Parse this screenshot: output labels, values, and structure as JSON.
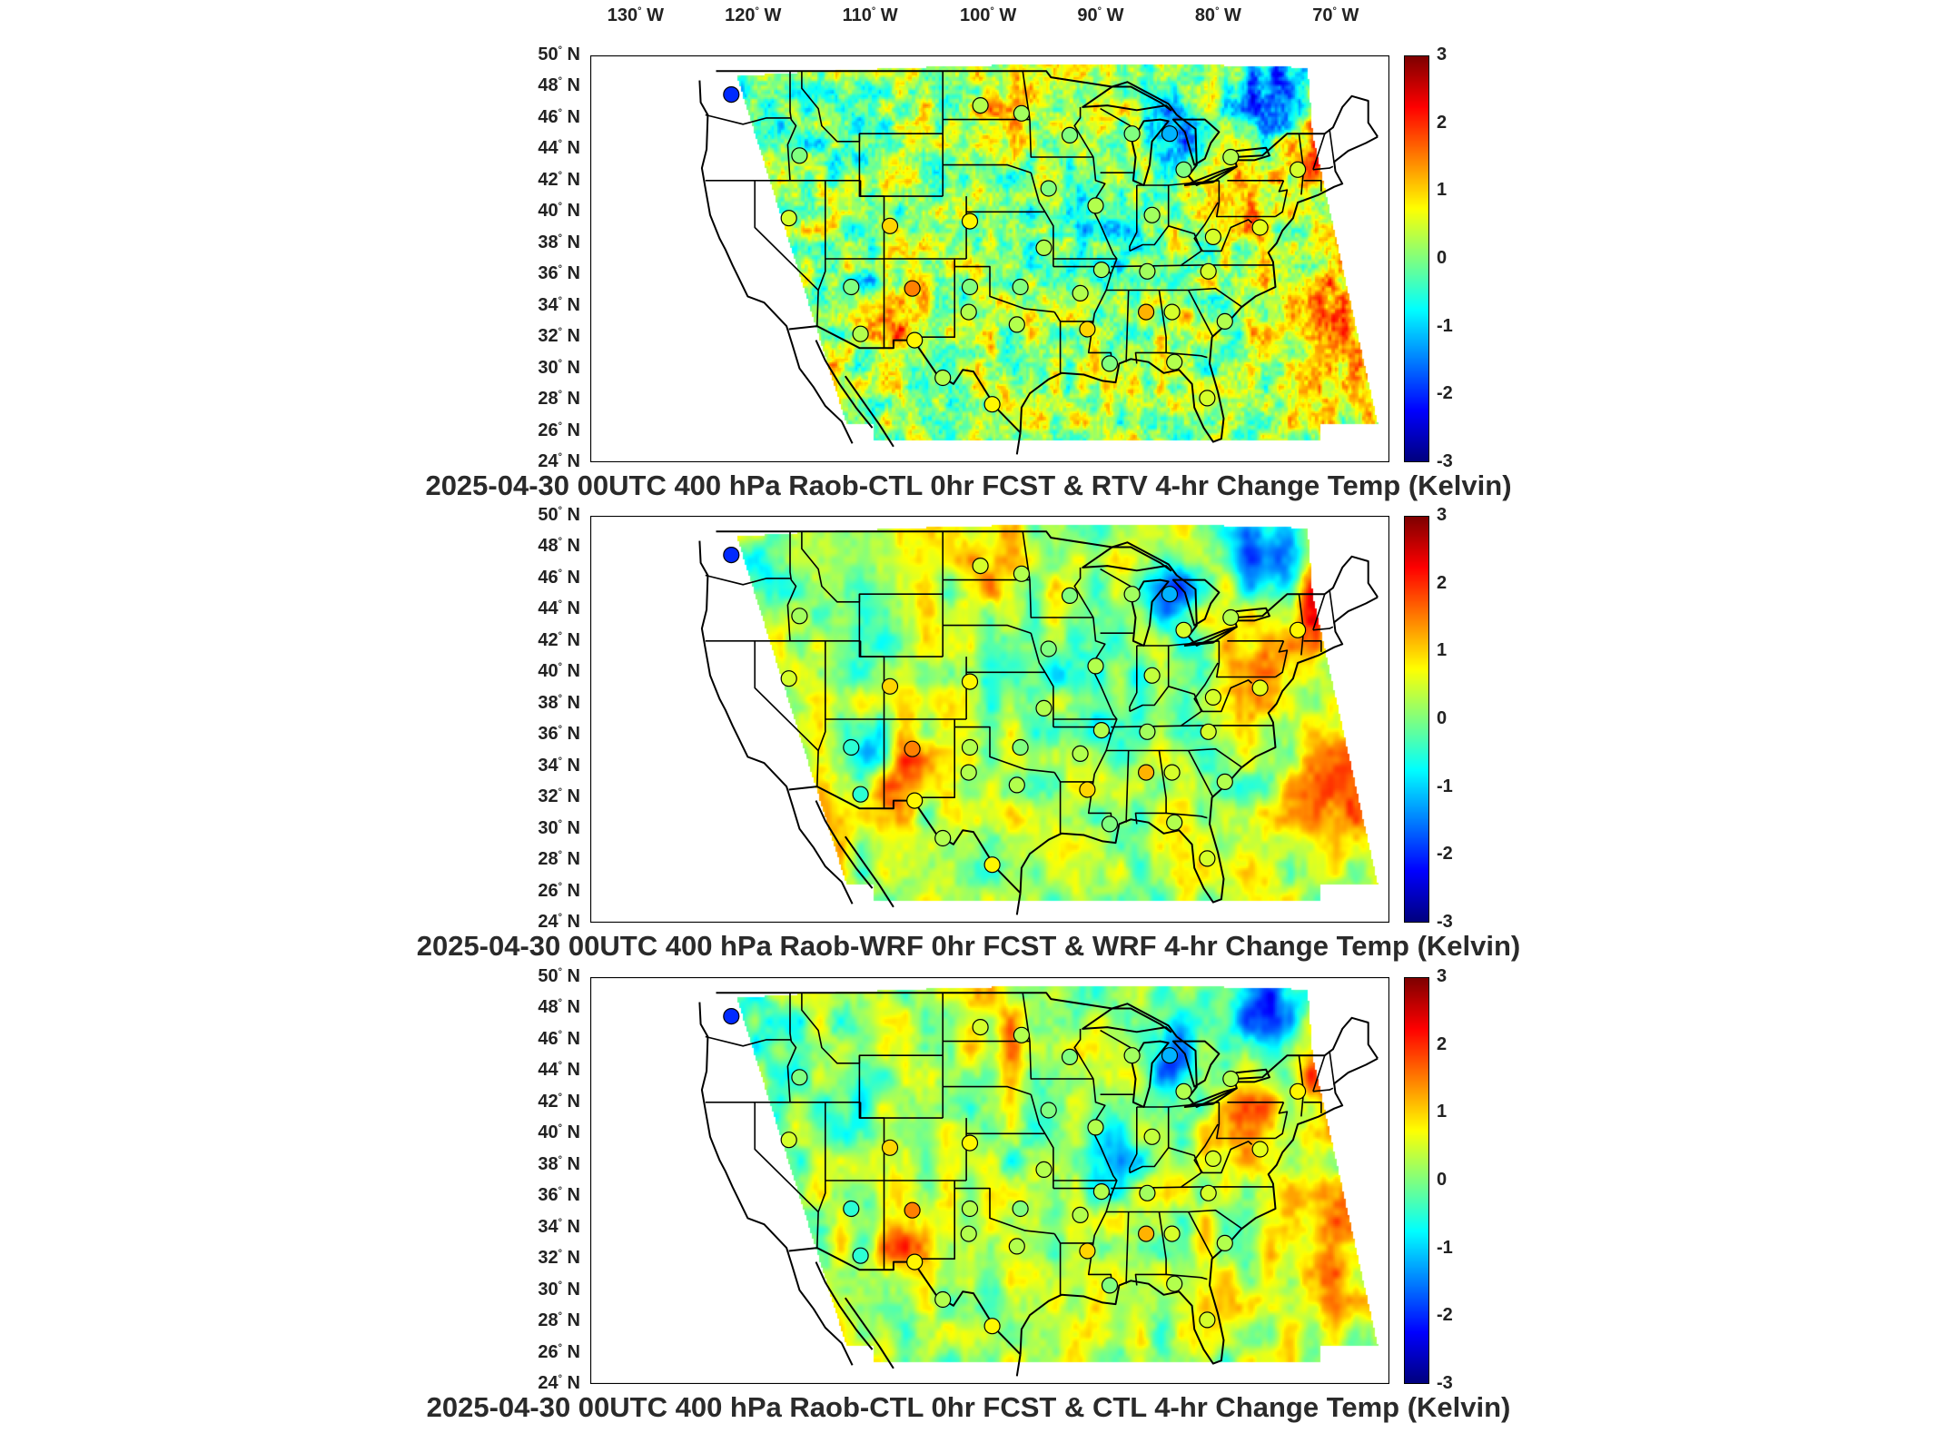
{
  "lon_labels": [
    "130",
    "120",
    "110",
    "100",
    "90",
    "80",
    "70"
  ],
  "lon_suffix": "W",
  "lat_labels": [
    "50",
    "48",
    "46",
    "44",
    "42",
    "40",
    "38",
    "36",
    "34",
    "32",
    "30",
    "28",
    "26",
    "24"
  ],
  "lat_suffix": "N",
  "colorbar": {
    "ticks": [
      "3",
      "2",
      "1",
      "0",
      "-1",
      "-2",
      "-3"
    ],
    "range": [
      -3,
      3
    ],
    "colormap": "jet",
    "colors": [
      "#00008f",
      "#0000ff",
      "#00bfff",
      "#40ffbf",
      "#c0ff40",
      "#ffd000",
      "#ff5000",
      "#c00000",
      "#800000"
    ]
  },
  "map": {
    "lon_range": [
      -134,
      -66
    ],
    "lat_range": [
      24,
      50
    ],
    "boundary_color": "#000000",
    "station_marker": "open circle filled with observation value"
  },
  "panels": [
    {
      "title": "2025-04-30 00UTC 400 hPa Raob-CTL 0hr FCST & RTV 4-hr Change Temp (Kelvin)"
    },
    {
      "title": "2025-04-30 00UTC 400 hPa Raob-WRF 0hr FCST & WRF 4-hr Change Temp (Kelvin)"
    },
    {
      "title": "2025-04-30 00UTC 400 hPa Raob-CTL 0hr FCST & CTL 4-hr Change Temp (Kelvin)"
    }
  ],
  "stations": [
    {
      "lon": -122.0,
      "lat": 47.5,
      "v": [
        -2.0,
        -2.0,
        -2.0
      ]
    },
    {
      "lon": -116.2,
      "lat": 43.6,
      "v": [
        0.0,
        0.2,
        0.0
      ]
    },
    {
      "lon": -100.8,
      "lat": 46.8,
      "v": [
        0.3,
        0.5,
        0.5
      ]
    },
    {
      "lon": -97.3,
      "lat": 46.3,
      "v": [
        0.2,
        0.3,
        0.3
      ]
    },
    {
      "lon": -93.2,
      "lat": 44.9,
      "v": [
        0.0,
        0.0,
        0.0
      ]
    },
    {
      "lon": -87.9,
      "lat": 45.0,
      "v": [
        0.0,
        0.2,
        0.2
      ]
    },
    {
      "lon": -84.7,
      "lat": 45.0,
      "v": [
        -1.2,
        -1.2,
        -1.2
      ]
    },
    {
      "lon": -83.5,
      "lat": 42.7,
      "v": [
        0.0,
        0.5,
        0.3
      ]
    },
    {
      "lon": -79.5,
      "lat": 43.5,
      "v": [
        0.3,
        0.3,
        0.3
      ]
    },
    {
      "lon": -73.8,
      "lat": 42.7,
      "v": [
        0.5,
        0.8,
        0.8
      ]
    },
    {
      "lon": -117.1,
      "lat": 39.6,
      "v": [
        0.5,
        0.5,
        0.5
      ]
    },
    {
      "lon": -108.5,
      "lat": 39.1,
      "v": [
        1.0,
        1.0,
        1.0
      ]
    },
    {
      "lon": -101.7,
      "lat": 39.4,
      "v": [
        0.8,
        0.8,
        0.8
      ]
    },
    {
      "lon": -95.0,
      "lat": 41.5,
      "v": [
        0.0,
        0.0,
        0.0
      ]
    },
    {
      "lon": -91.0,
      "lat": 40.4,
      "v": [
        0.3,
        0.3,
        0.3
      ]
    },
    {
      "lon": -86.2,
      "lat": 39.8,
      "v": [
        0.2,
        0.4,
        0.4
      ]
    },
    {
      "lon": -81.0,
      "lat": 38.4,
      "v": [
        0.5,
        0.5,
        0.5
      ]
    },
    {
      "lon": -77.0,
      "lat": 39.0,
      "v": [
        0.6,
        0.6,
        0.6
      ]
    },
    {
      "lon": -95.4,
      "lat": 37.7,
      "v": [
        0.3,
        0.3,
        0.3
      ]
    },
    {
      "lon": -90.5,
      "lat": 36.3,
      "v": [
        0.2,
        0.3,
        0.3
      ]
    },
    {
      "lon": -86.6,
      "lat": 36.2,
      "v": [
        0.2,
        0.2,
        0.2
      ]
    },
    {
      "lon": -81.4,
      "lat": 36.2,
      "v": [
        0.5,
        0.5,
        0.5
      ]
    },
    {
      "lon": -111.8,
      "lat": 35.2,
      "v": [
        0.0,
        -0.5,
        -0.5
      ]
    },
    {
      "lon": -106.6,
      "lat": 35.1,
      "v": [
        1.5,
        1.5,
        1.5
      ]
    },
    {
      "lon": -101.7,
      "lat": 35.2,
      "v": [
        0.0,
        0.3,
        0.3
      ]
    },
    {
      "lon": -97.4,
      "lat": 35.2,
      "v": [
        0.0,
        0.0,
        0.0
      ]
    },
    {
      "lon": -92.3,
      "lat": 34.8,
      "v": [
        0.3,
        0.3,
        0.3
      ]
    },
    {
      "lon": -86.7,
      "lat": 33.6,
      "v": [
        1.2,
        1.2,
        1.2
      ]
    },
    {
      "lon": -84.5,
      "lat": 33.6,
      "v": [
        0.5,
        0.5,
        0.5
      ]
    },
    {
      "lon": -80.0,
      "lat": 33.0,
      "v": [
        0.3,
        0.3,
        0.3
      ]
    },
    {
      "lon": -111.0,
      "lat": 32.2,
      "v": [
        0.3,
        -0.5,
        -0.5
      ]
    },
    {
      "lon": -106.4,
      "lat": 31.8,
      "v": [
        0.8,
        0.8,
        0.8
      ]
    },
    {
      "lon": -101.8,
      "lat": 33.6,
      "v": [
        0.3,
        0.3,
        0.3
      ]
    },
    {
      "lon": -97.7,
      "lat": 32.8,
      "v": [
        0.3,
        0.3,
        0.3
      ]
    },
    {
      "lon": -91.7,
      "lat": 32.5,
      "v": [
        1.0,
        1.0,
        1.0
      ]
    },
    {
      "lon": -89.8,
      "lat": 30.3,
      "v": [
        0.0,
        0.0,
        0.0
      ]
    },
    {
      "lon": -84.3,
      "lat": 30.4,
      "v": [
        0.3,
        0.3,
        0.3
      ]
    },
    {
      "lon": -104.0,
      "lat": 29.4,
      "v": [
        0.3,
        0.3,
        0.3
      ]
    },
    {
      "lon": -99.8,
      "lat": 27.7,
      "v": [
        0.8,
        0.8,
        0.8
      ]
    },
    {
      "lon": -81.5,
      "lat": 28.1,
      "v": [
        0.5,
        0.5,
        0.5
      ]
    }
  ]
}
